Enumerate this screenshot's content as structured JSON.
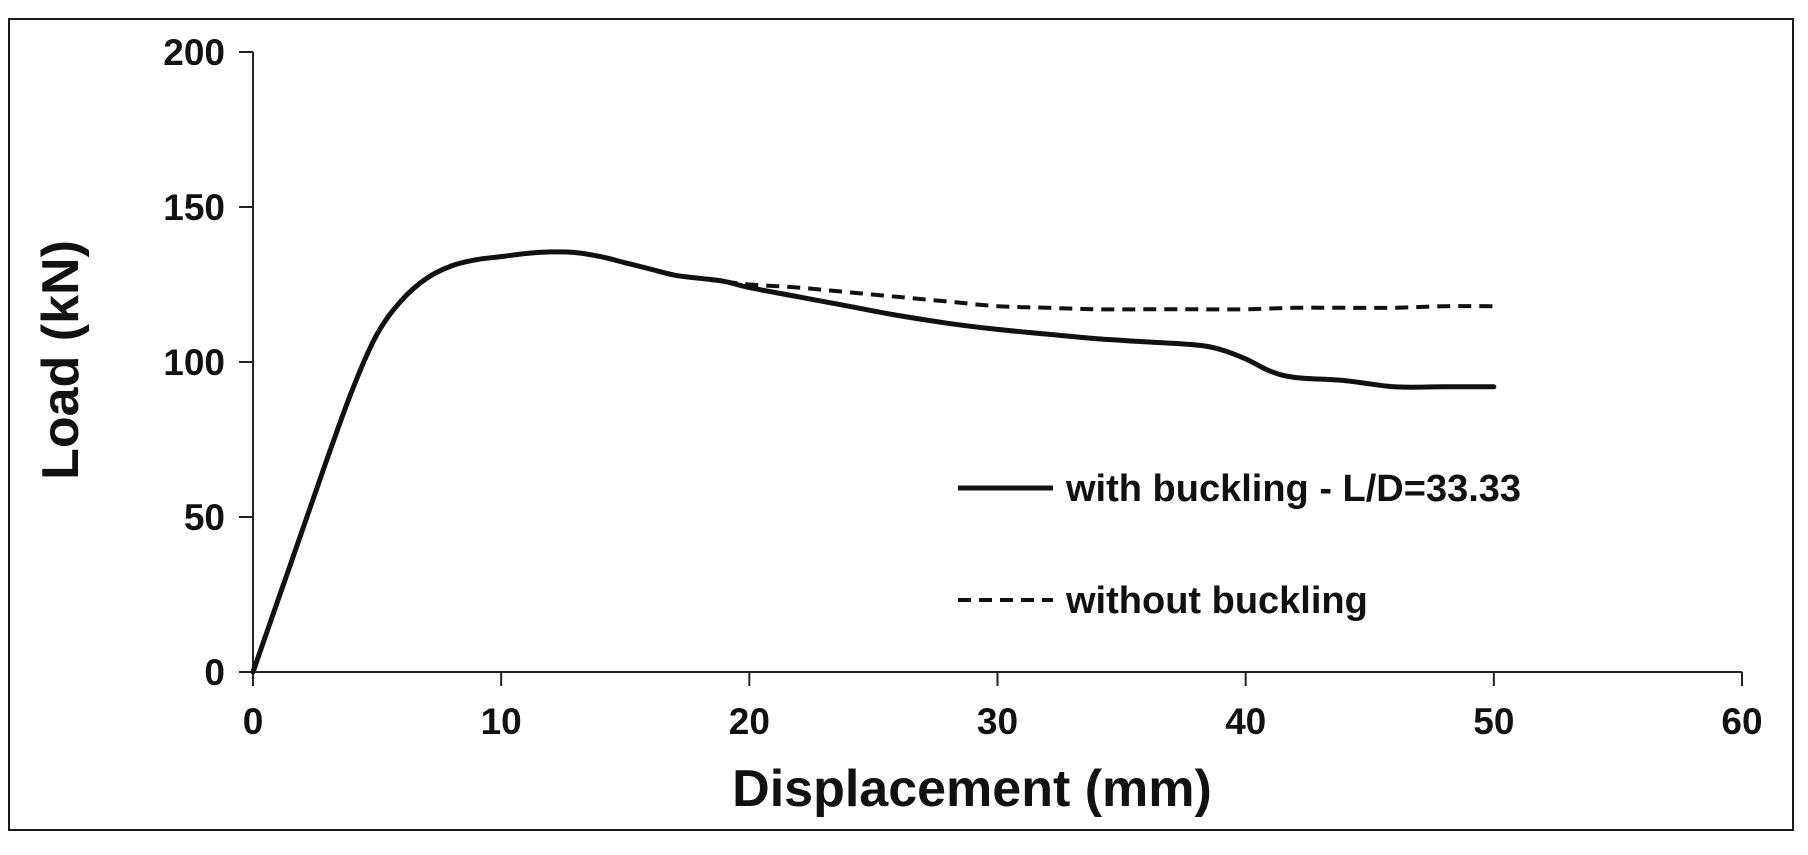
{
  "chart_data": {
    "type": "line",
    "title": "",
    "xlabel": "Displacement (mm)",
    "ylabel": "Load (kN)",
    "xlim": [
      0,
      60
    ],
    "ylim": [
      0,
      200
    ],
    "x_ticks": [
      "0",
      "10",
      "20",
      "30",
      "40",
      "50",
      "60"
    ],
    "y_ticks": [
      "0",
      "50",
      "100",
      "150",
      "200"
    ],
    "grid": false,
    "legend_position": "center-right",
    "series": [
      {
        "name": "with buckling - L/D=33.33",
        "style": "solid",
        "color": "#111111",
        "x": [
          0,
          1,
          2,
          3,
          4,
          5,
          6,
          7,
          8,
          9,
          10,
          11,
          12,
          13,
          14,
          15,
          16,
          17,
          18,
          19,
          20,
          22,
          24,
          26,
          28,
          30,
          32,
          34,
          36,
          38,
          39,
          40,
          41,
          42,
          44,
          46,
          48,
          50
        ],
        "y": [
          0,
          23,
          46,
          69,
          91,
          109,
          120,
          127,
          131,
          133,
          134,
          135,
          135.5,
          135.3,
          134,
          132,
          130,
          128,
          127,
          126,
          124,
          121,
          118,
          115,
          112.5,
          110.5,
          109,
          107.5,
          106.5,
          105.5,
          104,
          101,
          97,
          95,
          94,
          92,
          92,
          92
        ]
      },
      {
        "name": "without buckling",
        "style": "dashed",
        "color": "#111111",
        "x": [
          19,
          20,
          22,
          24,
          26,
          28,
          30,
          32,
          34,
          36,
          38,
          40,
          42,
          44,
          46,
          48,
          50
        ],
        "y": [
          126,
          125,
          124,
          122.5,
          121,
          119.5,
          118,
          117.5,
          117,
          117,
          117,
          117,
          117.5,
          117.5,
          117.5,
          118,
          118
        ]
      }
    ]
  }
}
